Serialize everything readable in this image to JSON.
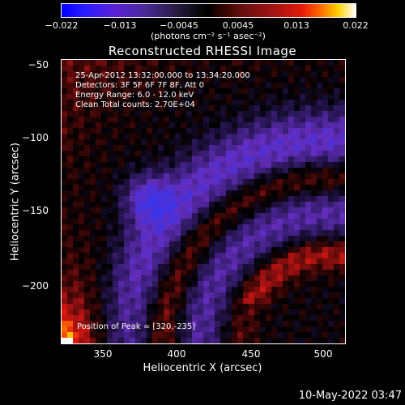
{
  "colorbar": {
    "ticks": [
      "−0.022",
      "−0.013",
      "−0.0045",
      "0.0045",
      "0.013",
      "0.022"
    ],
    "unit": "(photons cm⁻² s⁻¹ asec⁻²)"
  },
  "chart_data": {
    "type": "heatmap",
    "title": "Reconstructed RHESSI Image",
    "xlabel": "Heliocentric X (arcsec)",
    "ylabel": "Heliocentric Y (arcsec)",
    "xlim": [
      322,
      512
    ],
    "ylim": [
      -239,
      -49
    ],
    "xticks": [
      "350",
      "400",
      "450",
      "500"
    ],
    "yticks": [
      "−50",
      "−100",
      "−150",
      "−200"
    ],
    "zlim": [
      -0.022,
      0.022
    ],
    "info": [
      "25-Apr-2012 13:32:00.000 to 13:34:20.000",
      "Detectors: 3F 5F 6F 7F 8F, Att 0",
      "Energy Range: 6.0 - 12.0 keV",
      "Clean    Total counts: 2.70E+04"
    ],
    "peak_label": "Position of Peak = [320,-235]"
  },
  "timestamp": "10-May-2022 03:47",
  "colors": {
    "background": "#000000",
    "foreground": "#ffffff"
  }
}
